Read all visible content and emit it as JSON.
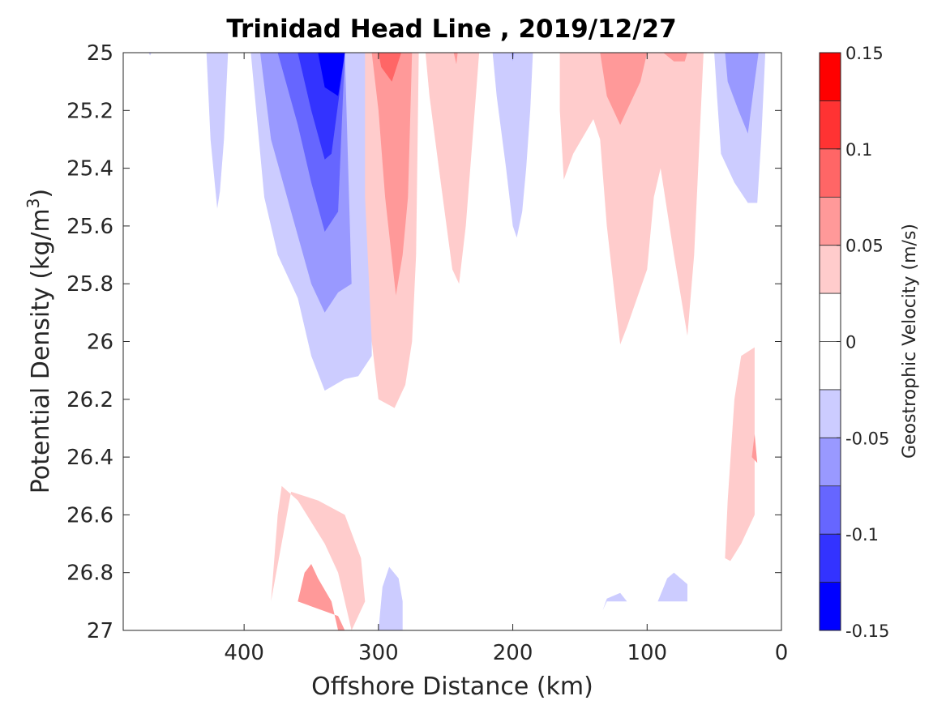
{
  "chart_data": {
    "type": "heatmap",
    "subtype": "filled-contour",
    "title": "Trinidad Head Line , 2019/12/27",
    "xlabel": "Offshore Distance (km)",
    "ylabel_main": "Potential Density (kg/m",
    "ylabel_sup": "3",
    "ylabel_end": ")",
    "xlim": [
      490,
      0
    ],
    "x_reversed": true,
    "ylim": [
      25,
      27
    ],
    "y_reversed": true,
    "xticks": [
      400,
      300,
      200,
      100,
      0
    ],
    "xtick_labels": [
      "400",
      "300",
      "200",
      "100",
      "0"
    ],
    "yticks": [
      25,
      25.2,
      25.4,
      25.6,
      25.8,
      26,
      26.2,
      26.4,
      26.6,
      26.8,
      27
    ],
    "ytick_labels": [
      "25",
      "25.2",
      "25.4",
      "25.6",
      "25.8",
      "26",
      "26.2",
      "26.4",
      "26.6",
      "26.8",
      "27"
    ],
    "colorbar": {
      "label": "Geostrophic Velocity (m/s)",
      "limits": [
        -0.15,
        0.15
      ],
      "levels": [
        -0.15,
        -0.125,
        -0.1,
        -0.075,
        -0.05,
        -0.025,
        0,
        0.025,
        0.05,
        0.075,
        0.1,
        0.125,
        0.15
      ],
      "colors": [
        "#0000ff",
        "#3333ff",
        "#6666ff",
        "#9999ff",
        "#ccccff",
        "#ffffff",
        "#ffffff",
        "#ffcccc",
        "#ff9999",
        "#ff6666",
        "#ff3333",
        "#ff0000"
      ],
      "ticks": [
        0.15,
        0.1,
        0.05,
        0,
        -0.05,
        -0.1,
        -0.15
      ],
      "tick_labels": [
        "0.15",
        "0.1",
        "0.05",
        "0",
        "-0.05",
        "-0.1",
        "-0.15"
      ]
    },
    "regions": [
      {
        "name": "negative-core-offshore",
        "value": -0.0375,
        "points": [
          [
            325,
            25
          ],
          [
            305,
            25
          ],
          [
            305,
            26.05
          ],
          [
            315,
            26.12
          ],
          [
            325,
            26.13
          ],
          [
            340,
            26.17
          ],
          [
            350,
            26.05
          ],
          [
            360,
            25.85
          ],
          [
            375,
            25.7
          ],
          [
            385,
            25.5
          ],
          [
            395,
            25
          ]
        ]
      },
      {
        "name": "negative-core-offshore",
        "value": -0.0625,
        "points": [
          [
            325,
            25
          ],
          [
            320,
            25.8
          ],
          [
            330,
            25.83
          ],
          [
            340,
            25.9
          ],
          [
            350,
            25.8
          ],
          [
            365,
            25.55
          ],
          [
            380,
            25.3
          ],
          [
            388,
            25
          ]
        ]
      },
      {
        "name": "negative-core-offshore",
        "value": -0.0875,
        "points": [
          [
            325,
            25
          ],
          [
            330,
            25.55
          ],
          [
            340,
            25.62
          ],
          [
            350,
            25.45
          ],
          [
            360,
            25.25
          ],
          [
            375,
            25
          ]
        ]
      },
      {
        "name": "negative-core-offshore",
        "value": -0.1125,
        "points": [
          [
            325,
            25
          ],
          [
            335,
            25.35
          ],
          [
            340,
            25.37
          ],
          [
            350,
            25.2
          ],
          [
            360,
            25
          ]
        ]
      },
      {
        "name": "negative-core-offshore",
        "value": -0.1375,
        "points": [
          [
            325,
            25
          ],
          [
            330,
            25.15
          ],
          [
            340,
            25.12
          ],
          [
            345,
            25
          ]
        ]
      },
      {
        "name": "negative-column-420km",
        "value": -0.0375,
        "points": [
          [
            428,
            25
          ],
          [
            412,
            25
          ],
          [
            415,
            25.3
          ],
          [
            418,
            25.48
          ],
          [
            420,
            25.54
          ],
          [
            425,
            25.3
          ]
        ]
      },
      {
        "name": "negative-speck-470km",
        "value": -0.0375,
        "points": [
          [
            471,
            25
          ],
          [
            469,
            25
          ],
          [
            470,
            25.01
          ]
        ]
      },
      {
        "name": "positive-column-290km",
        "value": 0.0375,
        "points": [
          [
            310,
            25
          ],
          [
            270,
            25
          ],
          [
            272,
            25.7
          ],
          [
            275,
            26
          ],
          [
            280,
            26.15
          ],
          [
            288,
            26.23
          ],
          [
            300,
            26.2
          ],
          [
            305,
            26
          ],
          [
            310,
            25.5
          ]
        ]
      },
      {
        "name": "positive-column-290km",
        "value": 0.0625,
        "points": [
          [
            305,
            25
          ],
          [
            275,
            25
          ],
          [
            278,
            25.5
          ],
          [
            282,
            25.7
          ],
          [
            287,
            25.84
          ],
          [
            295,
            25.5
          ],
          [
            300,
            25.2
          ]
        ]
      },
      {
        "name": "positive-column-290km",
        "value": 0.0875,
        "points": [
          [
            300,
            25
          ],
          [
            283,
            25
          ],
          [
            290,
            25.1
          ],
          [
            298,
            25.05
          ]
        ]
      },
      {
        "name": "positive-column-245km",
        "value": 0.0375,
        "points": [
          [
            265,
            25
          ],
          [
            225,
            25
          ],
          [
            230,
            25.3
          ],
          [
            235,
            25.6
          ],
          [
            240,
            25.8
          ],
          [
            245,
            25.75
          ],
          [
            255,
            25.4
          ],
          [
            262,
            25.15
          ]
        ]
      },
      {
        "name": "positive-speck-243km",
        "value": 0.0625,
        "points": [
          [
            244,
            25
          ],
          [
            241,
            25
          ],
          [
            242,
            25.04
          ]
        ]
      },
      {
        "name": "negative-column-200km",
        "value": -0.0375,
        "points": [
          [
            215,
            25
          ],
          [
            185,
            25
          ],
          [
            187,
            25.2
          ],
          [
            190,
            25.4
          ],
          [
            193,
            25.55
          ],
          [
            197,
            25.64
          ],
          [
            200,
            25.6
          ],
          [
            205,
            25.4
          ],
          [
            212,
            25.15
          ]
        ]
      },
      {
        "name": "negative-speck-200km",
        "value": -0.0625,
        "points": [
          [
            201,
            25
          ],
          [
            199,
            25
          ],
          [
            200,
            25.03
          ]
        ]
      },
      {
        "name": "positive-nearshore-upper",
        "value": 0.0375,
        "points": [
          [
            165,
            25
          ],
          [
            58,
            25
          ],
          [
            62,
            25.4
          ],
          [
            65,
            25.7
          ],
          [
            70,
            25.98
          ],
          [
            80,
            25.7
          ],
          [
            90,
            25.4
          ],
          [
            95,
            25.5
          ],
          [
            100,
            25.75
          ],
          [
            115,
            25.95
          ],
          [
            120,
            26.01
          ],
          [
            130,
            25.6
          ],
          [
            135,
            25.3
          ],
          [
            140,
            25.23
          ],
          [
            155,
            25.35
          ],
          [
            162,
            25.44
          ],
          [
            165,
            25.2
          ]
        ]
      },
      {
        "name": "positive-nearshore-upper",
        "value": 0.0625,
        "points": [
          [
            135,
            25
          ],
          [
            100,
            25
          ],
          [
            105,
            25.1
          ],
          [
            115,
            25.2
          ],
          [
            120,
            25.25
          ],
          [
            130,
            25.15
          ]
        ]
      },
      {
        "name": "positive-nearshore-upper",
        "value": 0.0625,
        "points": [
          [
            88,
            25
          ],
          [
            70,
            25
          ],
          [
            72,
            25.03
          ],
          [
            80,
            25.03
          ]
        ]
      },
      {
        "name": "negative-column-35km",
        "value": -0.0375,
        "points": [
          [
            50,
            25
          ],
          [
            12,
            25
          ],
          [
            15,
            25.3
          ],
          [
            18,
            25.52
          ],
          [
            25,
            25.52
          ],
          [
            35,
            25.45
          ],
          [
            45,
            25.35
          ],
          [
            48,
            25.15
          ]
        ]
      },
      {
        "name": "negative-column-35km",
        "value": -0.0625,
        "points": [
          [
            42,
            25
          ],
          [
            17,
            25
          ],
          [
            20,
            25.1
          ],
          [
            25,
            25.28
          ],
          [
            32,
            25.2
          ],
          [
            40,
            25.1
          ]
        ]
      },
      {
        "name": "positive-nearshore-deep",
        "value": 0.0375,
        "points": [
          [
            20,
            26.02
          ],
          [
            30,
            26.05
          ],
          [
            35,
            26.2
          ],
          [
            40,
            26.55
          ],
          [
            42,
            26.75
          ],
          [
            38,
            26.76
          ],
          [
            30,
            26.7
          ],
          [
            20,
            26.6
          ]
        ]
      },
      {
        "name": "positive-speck-20km",
        "value": 0.0625,
        "points": [
          [
            20,
            26.32
          ],
          [
            22,
            26.4
          ],
          [
            18,
            26.42
          ]
        ]
      },
      {
        "name": "positive-deep-offshore",
        "value": 0.0375,
        "points": [
          [
            380,
            26.9
          ],
          [
            375,
            26.6
          ],
          [
            372,
            26.5
          ],
          [
            360,
            26.55
          ],
          [
            340,
            26.7
          ],
          [
            330,
            26.8
          ],
          [
            320,
            27
          ],
          [
            310,
            26.9
          ],
          [
            313,
            26.75
          ],
          [
            325,
            26.6
          ],
          [
            345,
            26.55
          ],
          [
            365,
            26.52
          ]
        ]
      },
      {
        "name": "positive-deep-offshore",
        "value": 0.0625,
        "points": [
          [
            360,
            26.9
          ],
          [
            355,
            26.8
          ],
          [
            350,
            26.77
          ],
          [
            345,
            26.82
          ],
          [
            335,
            26.9
          ],
          [
            330,
            27
          ],
          [
            325,
            27
          ],
          [
            330,
            26.95
          ]
        ]
      },
      {
        "name": "negative-deep-290km",
        "value": -0.0375,
        "points": [
          [
            300,
            27
          ],
          [
            297,
            26.85
          ],
          [
            292,
            26.78
          ],
          [
            285,
            26.82
          ],
          [
            282,
            26.9
          ],
          [
            282,
            27
          ]
        ]
      },
      {
        "name": "negative-deep-130km",
        "value": -0.0375,
        "points": [
          [
            133,
            26.93
          ],
          [
            130,
            26.89
          ],
          [
            120,
            26.87
          ],
          [
            115,
            26.9
          ],
          [
            130,
            26.9
          ]
        ]
      },
      {
        "name": "negative-deep-80km",
        "value": -0.0375,
        "points": [
          [
            92,
            26.9
          ],
          [
            85,
            26.82
          ],
          [
            80,
            26.8
          ],
          [
            70,
            26.84
          ],
          [
            70,
            26.9
          ]
        ]
      }
    ]
  }
}
